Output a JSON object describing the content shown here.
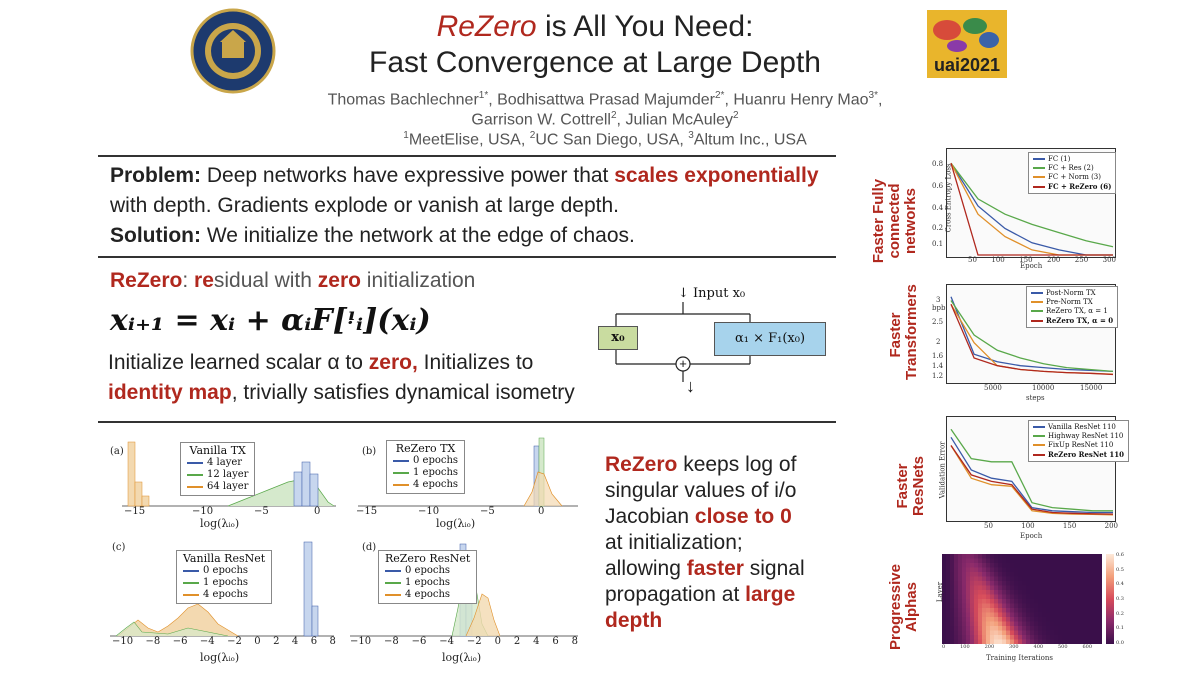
{
  "header": {
    "title_em": "ReZero",
    "title_rest": " is All You Need:",
    "title_line2": "Fast Convergence at Large Depth",
    "authors_line1": "Thomas Bachlechner<sup>1*</sup>, Bodhisattwa Prasad Majumder<sup>2*</sup>, Huanru Henry Mao<sup>3*</sup>,",
    "authors_line2": "Garrison W. Cottrell<sup>2</sup>, Julian McAuley<sup>2</sup>",
    "affiliations": "<sup>1</sup>MeetElise, USA, <sup>2</sup>UC San Diego, USA, <sup>3</sup>Altum Inc., USA",
    "logo_right_text": "uai2021"
  },
  "problem": {
    "label": "Problem:",
    "text_a": " Deep networks have expressive power that ",
    "highlight": "scales exponentially",
    "text_b": "with depth. Gradients explode or vanish at large depth.",
    "solution_label": "Solution:",
    "solution_text": " We initialize the network at the edge of chaos."
  },
  "rezero": {
    "name": "ReZero",
    "colon": ": ",
    "re": "re",
    "sidual_with": "sidual with ",
    "zero": "zero",
    "initialization": " initialization",
    "equation": "xᵢ₊₁ = xᵢ + αᵢF[ᵎᵢ](xᵢ)",
    "init_a": "Initialize learned scalar α to ",
    "init_zero": "zero,",
    "init_b": " Initializes to",
    "identity_map": "identity map",
    "init_c": ", trivially satisfies dynamical isometry"
  },
  "diagram": {
    "input_label": "↓ Input x₀",
    "box_x0": "x₀",
    "box_f": "α₁ × F₁(x₀)",
    "plus": "+",
    "down": "↓",
    "colors": {
      "x0_box": "#c9dca0",
      "f_box": "#a7d3ec"
    }
  },
  "summary": {
    "rezero": "ReZero",
    "t1": " keeps log of singular values of i/o Jacobian ",
    "close": "close to 0",
    "t2": " at initialization; allowing ",
    "faster": "faster",
    "t3": " signal propagation at ",
    "large": "large depth"
  },
  "side_labels": {
    "fc": "Faster Fully connected networks",
    "tx": "Faster Transformers",
    "resnet": "Faster ResNets",
    "alphas": "Progressive Alphas"
  },
  "colors": {
    "accent": "#b0281e",
    "blue": "#3a5aa8",
    "green": "#59a84a",
    "orange": "#e0902a",
    "red": "#b0281e"
  },
  "chart_data": [
    {
      "id": "fc",
      "type": "line",
      "xlabel": "Epoch",
      "ylabel": "Cross Entropy Loss",
      "xticks": [
        "50",
        "100",
        "150",
        "200",
        "250",
        "300"
      ],
      "yticks": [
        "0.8",
        "0.6",
        "0.4",
        "0.2",
        "0.1"
      ],
      "legend": [
        "FC (1)",
        "FC + Res (2)",
        "FC + Norm (3)",
        "FC + ReZero (6)"
      ],
      "x": [
        0,
        50,
        100,
        150,
        200,
        250,
        300
      ],
      "series": [
        {
          "name": "FC (1)",
          "values": [
            0.9,
            0.48,
            0.26,
            0.12,
            0.05,
            0,
            0
          ]
        },
        {
          "name": "FC + Res (2)",
          "values": [
            0.9,
            0.55,
            0.4,
            0.3,
            0.22,
            0.14,
            0.08
          ]
        },
        {
          "name": "FC + Norm (3)",
          "values": [
            0.9,
            0.4,
            0.18,
            0.05,
            0,
            0,
            0
          ]
        },
        {
          "name": "FC + ReZero (6)",
          "values": [
            0.9,
            0,
            0,
            0,
            0,
            0,
            0
          ]
        }
      ]
    },
    {
      "id": "tx",
      "type": "line",
      "xlabel": "steps",
      "ylabel": "bpb",
      "xticks": [
        "5000",
        "10000",
        "15000"
      ],
      "yticks": [
        "3",
        "2.5",
        "2",
        "1.6",
        "1.4",
        "1.2"
      ],
      "legend": [
        "Post-Norm TX",
        "Pre-Norm TX",
        "ReZero TX, α = 1",
        "ReZero TX, α = 0"
      ],
      "x": [
        0,
        2500,
        5000,
        7500,
        10000,
        12500,
        15000,
        17500
      ],
      "series": [
        {
          "name": "Post-Norm TX",
          "values": [
            3.2,
            1.7,
            1.5,
            1.4,
            1.35,
            1.3,
            1.28,
            1.25
          ]
        },
        {
          "name": "Pre-Norm TX",
          "values": [
            3.0,
            2.0,
            1.4,
            1.3,
            1.25,
            1.22,
            1.2,
            1.18
          ]
        },
        {
          "name": "ReZero TX, α = 1",
          "values": [
            3.1,
            2.2,
            1.8,
            1.6,
            1.45,
            1.35,
            1.3,
            1.25
          ]
        },
        {
          "name": "ReZero TX, α = 0",
          "values": [
            3.0,
            1.6,
            1.4,
            1.3,
            1.25,
            1.22,
            1.2,
            1.17
          ]
        }
      ]
    },
    {
      "id": "resnet",
      "type": "line",
      "xlabel": "Epoch",
      "ylabel": "Validation Error",
      "xticks": [
        "50",
        "100",
        "150",
        "200"
      ],
      "legend": [
        "Vanilla ResNet 110",
        "Highway ResNet 110",
        "FixUp ResNet 110",
        "ReZero ResNet 110"
      ],
      "x": [
        0,
        25,
        50,
        75,
        100,
        125,
        150,
        175,
        200
      ],
      "series": [
        {
          "name": "Vanilla ResNet 110",
          "values": [
            0.55,
            0.35,
            0.3,
            0.28,
            0.12,
            0.1,
            0.095,
            0.09,
            0.09
          ]
        },
        {
          "name": "Highway ResNet 110",
          "values": [
            0.6,
            0.42,
            0.4,
            0.4,
            0.15,
            0.12,
            0.11,
            0.1,
            0.1
          ]
        },
        {
          "name": "FixUp ResNet 110",
          "values": [
            0.5,
            0.3,
            0.26,
            0.25,
            0.1,
            0.085,
            0.08,
            0.078,
            0.076
          ]
        },
        {
          "name": "ReZero ResNet 110",
          "values": [
            0.5,
            0.32,
            0.28,
            0.26,
            0.11,
            0.09,
            0.085,
            0.082,
            0.08
          ]
        }
      ]
    },
    {
      "id": "alphas",
      "type": "heatmap",
      "xlabel": "Training Iterations",
      "ylabel": "Layer",
      "xticks": [
        "0",
        "100",
        "200",
        "300",
        "400",
        "500",
        "600"
      ],
      "cbar_ticks": [
        "0.6",
        "0.5",
        "0.4",
        "0.3",
        "0.2",
        "0.1",
        "0.0"
      ]
    },
    {
      "id": "hist_a",
      "panel": "(a)",
      "type": "bar",
      "title": "Vanilla TX",
      "xlabel": "log(λᵢₒ)",
      "xticks": [
        "−15",
        "−10",
        "−5",
        "0"
      ],
      "legend": [
        "4 layer",
        "12 layer",
        "64 layer"
      ]
    },
    {
      "id": "hist_b",
      "panel": "(b)",
      "type": "bar",
      "title": "ReZero TX",
      "xlabel": "log(λᵢₒ)",
      "xticks": [
        "−15",
        "−10",
        "−5",
        "0"
      ],
      "legend": [
        "0 epochs",
        "1 epochs",
        "4 epochs"
      ]
    },
    {
      "id": "hist_c",
      "panel": "(c)",
      "type": "bar",
      "title": "Vanilla ResNet",
      "xlabel": "log(λᵢₒ)",
      "xticks": [
        "−10",
        "−8",
        "−6",
        "−4",
        "−2",
        "0",
        "2",
        "4",
        "6",
        "8"
      ],
      "legend": [
        "0 epochs",
        "1 epochs",
        "4 epochs"
      ]
    },
    {
      "id": "hist_d",
      "panel": "(d)",
      "type": "bar",
      "title": "ReZero ResNet",
      "xlabel": "log(λᵢₒ)",
      "xticks": [
        "−10",
        "−8",
        "−6",
        "−4",
        "−2",
        "0",
        "2",
        "4",
        "6",
        "8"
      ],
      "legend": [
        "0 epochs",
        "1 epochs",
        "4 epochs"
      ]
    }
  ]
}
